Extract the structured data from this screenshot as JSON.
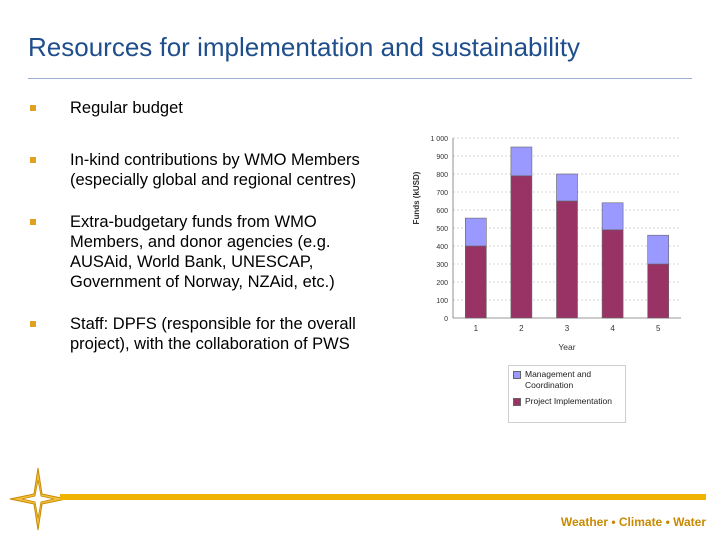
{
  "slide": {
    "title": "Resources for implementation and sustainability",
    "tagline": "Weather • Climate • Water"
  },
  "bullets": [
    "Regular budget",
    "In-kind contributions by WMO Members (especially global and regional centres)",
    "Extra-budgetary funds from WMO Members, and donor agencies (e.g. AUSAid, World Bank, UNESCAP, Government of Norway, NZAid, etc.)",
    "Staff: DPFS (responsible for the overall project), with the collaboration of PWS"
  ],
  "colors": {
    "title": "#1f4e8c",
    "bullet": "#e0a020",
    "management": "#9999ff",
    "implementation": "#993366",
    "footer": "#f0b400"
  },
  "chart_data": {
    "type": "bar",
    "stacked": true,
    "categories": [
      "1",
      "2",
      "3",
      "4",
      "5"
    ],
    "series": [
      {
        "name": "Project Implementation",
        "values": [
          400,
          790,
          650,
          490,
          300
        ]
      },
      {
        "name": "Management and Coordination",
        "values": [
          155,
          160,
          150,
          150,
          160
        ]
      }
    ],
    "xlabel": "Year",
    "ylabel": "Funds (kUSD)",
    "ylim": [
      0,
      1000
    ],
    "yticks": [
      0,
      100,
      200,
      300,
      400,
      500,
      600,
      700,
      800,
      900,
      1000
    ],
    "ytick_labels": [
      "0",
      "100",
      "200",
      "300",
      "400",
      "500",
      "600",
      "700",
      "800",
      "900",
      "1 000"
    ],
    "grid": true,
    "legend_position": "bottom"
  }
}
